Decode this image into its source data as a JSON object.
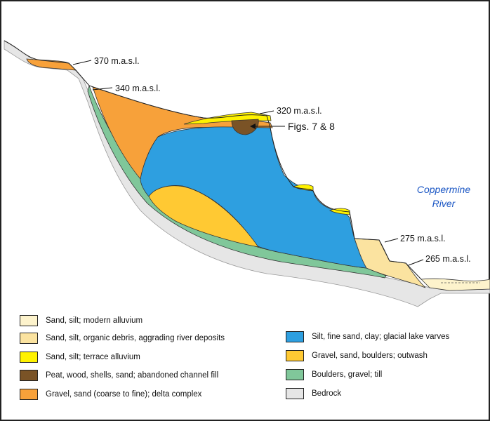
{
  "elevation_labels": {
    "e370": "370 m.a.s.l.",
    "e340": "340 m.a.s.l.",
    "e320": "320 m.a.s.l.",
    "e275": "275 m.a.s.l.",
    "e265": "265 m.a.s.l."
  },
  "figure_reference": "Figs. 7 & 8",
  "river_label": {
    "line1": "Coppermine",
    "line2": "River"
  },
  "colors": {
    "modern_alluvium": "#fdf3cc",
    "aggrading_river": "#fbe3a0",
    "terrace_alluvium": "#fff200",
    "abandoned_channel": "#7a5326",
    "delta_complex": "#f7a13a",
    "glacial_lake": "#2e9fe0",
    "outwash": "#ffc933",
    "till": "#80c79a",
    "bedrock": "#e6e6e6",
    "river_text": "#1a56c4"
  },
  "legend": {
    "left": [
      {
        "label": "Sand, silt; modern alluvium",
        "color": "#fdf3cc"
      },
      {
        "label": "Sand, silt, organic debris, aggrading river deposits",
        "color": "#fbe3a0"
      },
      {
        "label": "Sand, silt; terrace alluvium",
        "color": "#fff200"
      },
      {
        "label": "Peat, wood, shells, sand; abandoned channel fill",
        "color": "#7a5326"
      },
      {
        "label": "Gravel, sand (coarse to fine); delta complex",
        "color": "#f7a13a"
      }
    ],
    "right": [
      {
        "label": "Silt, fine sand, clay; glacial lake varves",
        "color": "#2e9fe0"
      },
      {
        "label": "Gravel, sand, boulders; outwash",
        "color": "#ffc933"
      },
      {
        "label": "Boulders, gravel; till",
        "color": "#80c79a"
      },
      {
        "label": "Bedrock",
        "color": "#e6e6e6"
      }
    ]
  }
}
